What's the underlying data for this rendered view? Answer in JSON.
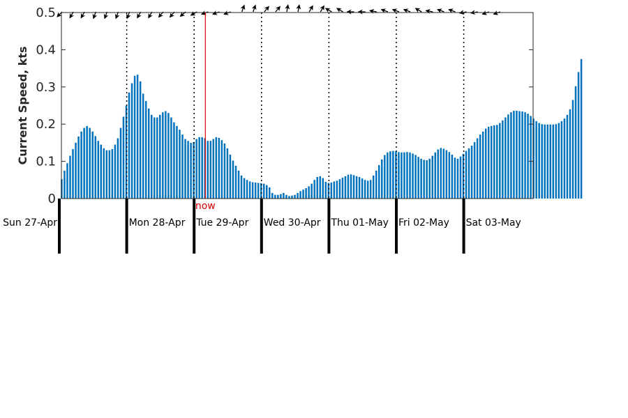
{
  "chart_data": {
    "type": "bar",
    "ylabel": "Current Speed, kts",
    "ylim": [
      0,
      0.5
    ],
    "yticks": [
      "0",
      "0.1",
      "0.2",
      "0.3",
      "0.4",
      "0.5"
    ],
    "bar_color": "#0072bd",
    "now_color": "#e00000",
    "now_label": "now",
    "now_hour": 52,
    "hours_per_bar": 1,
    "days": [
      {
        "label": "Sun 27-Apr"
      },
      {
        "label": "Mon 28-Apr"
      },
      {
        "label": "Tue 29-Apr"
      },
      {
        "label": "Wed 30-Apr"
      },
      {
        "label": "Thu 01-May"
      },
      {
        "label": "Fri 02-May"
      },
      {
        "label": "Sat 03-May"
      }
    ],
    "values": [
      0.052,
      0.075,
      0.095,
      0.115,
      0.133,
      0.15,
      0.167,
      0.18,
      0.19,
      0.195,
      0.19,
      0.18,
      0.168,
      0.155,
      0.145,
      0.135,
      0.13,
      0.13,
      0.133,
      0.145,
      0.162,
      0.19,
      0.22,
      0.25,
      0.285,
      0.31,
      0.33,
      0.333,
      0.315,
      0.282,
      0.262,
      0.242,
      0.225,
      0.218,
      0.218,
      0.225,
      0.232,
      0.235,
      0.23,
      0.218,
      0.205,
      0.195,
      0.185,
      0.172,
      0.16,
      0.155,
      0.15,
      0.152,
      0.16,
      0.165,
      0.165,
      0.162,
      0.155,
      0.155,
      0.16,
      0.165,
      0.163,
      0.157,
      0.148,
      0.135,
      0.118,
      0.102,
      0.088,
      0.075,
      0.062,
      0.055,
      0.05,
      0.046,
      0.044,
      0.043,
      0.042,
      0.041,
      0.04,
      0.036,
      0.03,
      0.015,
      0.01,
      0.01,
      0.012,
      0.015,
      0.01,
      0.007,
      0.008,
      0.01,
      0.015,
      0.02,
      0.024,
      0.028,
      0.033,
      0.04,
      0.05,
      0.058,
      0.06,
      0.055,
      0.045,
      0.042,
      0.043,
      0.046,
      0.048,
      0.052,
      0.056,
      0.06,
      0.064,
      0.065,
      0.063,
      0.06,
      0.058,
      0.054,
      0.05,
      0.048,
      0.05,
      0.062,
      0.075,
      0.09,
      0.105,
      0.117,
      0.124,
      0.127,
      0.128,
      0.127,
      0.125,
      0.124,
      0.124,
      0.125,
      0.124,
      0.121,
      0.117,
      0.112,
      0.107,
      0.104,
      0.103,
      0.107,
      0.115,
      0.124,
      0.132,
      0.136,
      0.134,
      0.13,
      0.125,
      0.118,
      0.11,
      0.107,
      0.113,
      0.12,
      0.128,
      0.135,
      0.142,
      0.152,
      0.162,
      0.172,
      0.18,
      0.188,
      0.193,
      0.195,
      0.197,
      0.198,
      0.203,
      0.21,
      0.218,
      0.226,
      0.232,
      0.236,
      0.236,
      0.235,
      0.234,
      0.232,
      0.228,
      0.222,
      0.215,
      0.208,
      0.203,
      0.2,
      0.199,
      0.199,
      0.199,
      0.199,
      0.2,
      0.203,
      0.208,
      0.215,
      0.225,
      0.24,
      0.265,
      0.302,
      0.34,
      0.375
    ],
    "arrow_directions_deg": [
      225,
      210,
      210,
      200,
      200,
      200,
      200,
      210,
      210,
      220,
      220,
      230,
      240,
      250,
      250,
      250,
      20,
      20,
      40,
      40,
      10,
      10,
      30,
      30,
      300,
      300,
      270,
      270,
      280,
      290,
      290,
      290,
      300,
      280,
      290,
      290,
      260,
      260,
      250,
      250
    ]
  }
}
